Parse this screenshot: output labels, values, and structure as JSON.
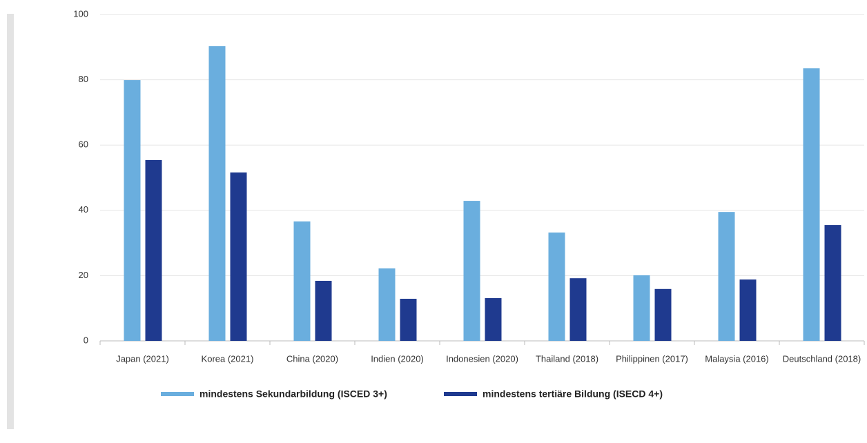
{
  "chart_data": {
    "type": "bar",
    "categories": [
      "Japan (2021)",
      "Korea (2021)",
      "China (2020)",
      "Indien (2020)",
      "Indonesien (2020)",
      "Thailand (2018)",
      "Philippinen (2017)",
      "Malaysia (2016)",
      "Deutschland (2018)"
    ],
    "series": [
      {
        "name": "mindestens Sekundarbildung (ISCED 3+)",
        "color": "#6aaede",
        "values": [
          79.9,
          90.3,
          36.6,
          22.2,
          42.9,
          33.2,
          20.1,
          39.5,
          83.5
        ]
      },
      {
        "name": "mindestens tertiäre Bildung (ISECD 4+)",
        "color": "#1f3a8f",
        "values": [
          55.4,
          51.6,
          18.4,
          12.9,
          13.1,
          19.2,
          15.9,
          18.8,
          35.5
        ]
      }
    ],
    "ylim": [
      0,
      100
    ],
    "yticks": [
      0,
      20,
      40,
      60,
      80,
      100
    ],
    "grid": true,
    "legend": "bottom"
  }
}
